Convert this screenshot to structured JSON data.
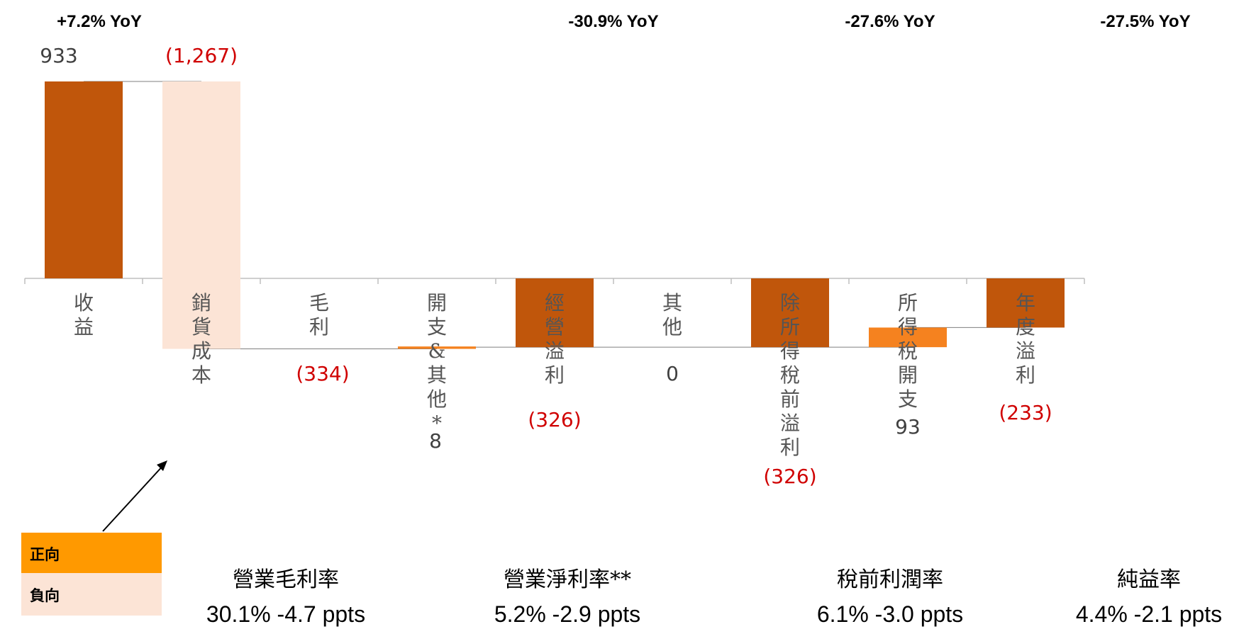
{
  "chart_data": {
    "type": "bar",
    "title": "",
    "xlabel": "",
    "ylabel": "",
    "categories": [
      "收益",
      "銷貨成本",
      "毛利",
      "開支＆其他*",
      "經營溢利",
      "其他",
      "除所得稅前溢利",
      "所得稅開支",
      "年度溢利"
    ],
    "values": [
      933,
      -1267,
      -334,
      8,
      -326,
      0,
      -326,
      93,
      -233
    ],
    "value_labels": [
      "933",
      "(1,267)",
      "(334)",
      "8",
      "(326)",
      "0",
      "(326)",
      "93",
      "(233)"
    ],
    "yoy_labels": [
      "+7.2% YoY",
      "-30.9% YoY",
      "-27.6% YoY",
      "-27.5% YoY"
    ],
    "metrics": [
      {
        "label": "營業毛利率",
        "value": "30.1% -4.7 ppts"
      },
      {
        "label": "營業淨利率**",
        "value": "5.2% -2.9 ppts"
      },
      {
        "label": "稅前利潤率",
        "value": "6.1% -3.0 ppts"
      },
      {
        "label": "純益率",
        "value": "4.4% -2.1 ppts"
      }
    ],
    "legend": [
      {
        "label": "正向",
        "color": "#ff9900"
      },
      {
        "label": "負向",
        "color": "#fce4d6"
      }
    ],
    "colors": {
      "total": "#c0560b",
      "increase": "#f5821f",
      "decrease": "#fce4d6",
      "negative_label": "#d00000",
      "positive_label": "#404040"
    }
  }
}
